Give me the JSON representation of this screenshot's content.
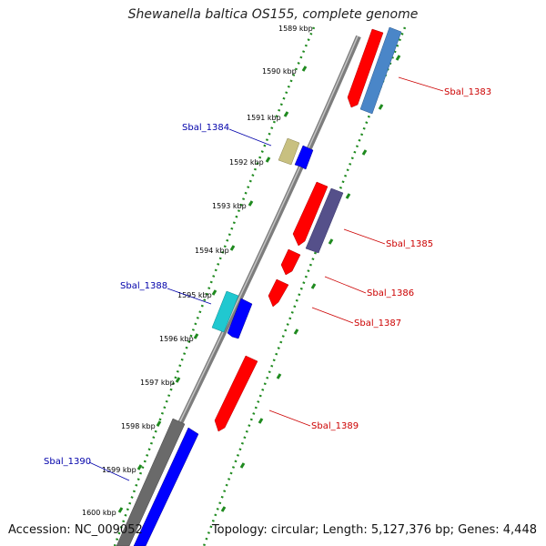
{
  "title": "Shewanella baltica OS155, complete genome",
  "footer": {
    "accession": "Accession: NC_009052",
    "summary": "Topology: circular; Length: 5,127,376 bp; Genes: 4,448"
  },
  "ticks": [
    "1589 kbp",
    "1590 kbp",
    "1591 kbp",
    "1592 kbp",
    "1593 kbp",
    "1594 kbp",
    "1595 kbp",
    "1596 kbp",
    "1597 kbp",
    "1598 kbp",
    "1599 kbp",
    "1600 kbp"
  ],
  "genes": [
    {
      "label": "Sbal_1383",
      "color": "#cc0000"
    },
    {
      "label": "Sbal_1384",
      "color": "#0000aa"
    },
    {
      "label": "Sbal_1385",
      "color": "#cc0000"
    },
    {
      "label": "Sbal_1386",
      "color": "#cc0000"
    },
    {
      "label": "Sbal_1387",
      "color": "#cc0000"
    },
    {
      "label": "Sbal_1388",
      "color": "#0000aa"
    },
    {
      "label": "Sbal_1389",
      "color": "#cc0000"
    },
    {
      "label": "Sbal_1390",
      "color": "#0000aa"
    }
  ],
  "colors": {
    "backbone": "#808080",
    "tick_track": "#1f8a1f",
    "red_feature": "#ff0000",
    "blue_feature": "#0000ff",
    "steelblue_feature": "#4a86c8",
    "khaki_feature": "#c8c080",
    "slate_feature": "#55508a",
    "cyan_feature": "#20c8d0",
    "gray_feature": "#6a6a6a"
  }
}
